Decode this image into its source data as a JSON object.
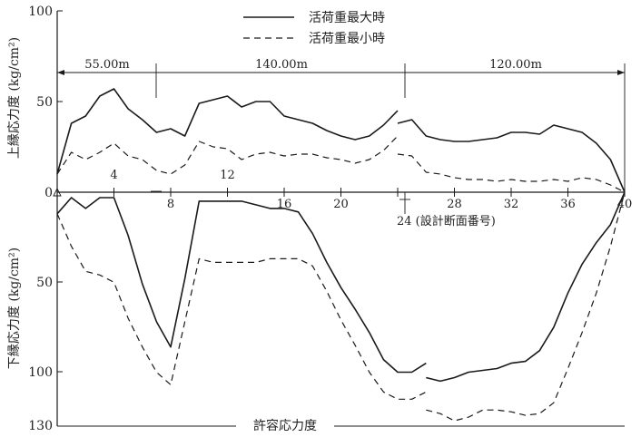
{
  "legend": {
    "max_label": "活荷重最大時",
    "min_label": "活荷重最小時"
  },
  "chart_data": [
    {
      "type": "line",
      "title": "",
      "ylabel": "上縁応力度 (kg/cm²)",
      "ylim": [
        0,
        100
      ],
      "y_ticks": [
        "100",
        "50",
        "0"
      ],
      "x_ticks": [
        "4",
        "8",
        "12",
        "16",
        "20",
        "24",
        "28",
        "32",
        "36",
        "40"
      ],
      "x_axis_label": "24 (設計断面番号)",
      "span_labels": [
        "55.00m",
        "140.00m",
        "120.00m"
      ],
      "series": [
        {
          "name": "活荷重最大時",
          "segments": [
            [
              [
                0,
                10
              ],
              [
                1,
                38
              ],
              [
                2,
                42
              ],
              [
                3,
                53
              ],
              [
                4,
                57
              ],
              [
                5,
                46
              ],
              [
                6,
                40
              ],
              [
                7,
                33
              ],
              [
                8,
                35
              ],
              [
                9,
                31
              ],
              [
                10,
                49
              ],
              [
                11,
                51
              ],
              [
                12,
                53
              ],
              [
                13,
                47
              ],
              [
                14,
                50
              ],
              [
                15,
                50
              ],
              [
                16,
                42
              ],
              [
                17,
                40
              ],
              [
                18,
                38
              ],
              [
                19,
                34
              ],
              [
                20,
                31
              ],
              [
                21,
                29
              ],
              [
                22,
                31
              ],
              [
                23,
                37
              ],
              [
                24,
                45
              ]
            ],
            [
              [
                24,
                38
              ],
              [
                25,
                40
              ],
              [
                26,
                31
              ],
              [
                27,
                29
              ],
              [
                28,
                28
              ],
              [
                29,
                28
              ],
              [
                30,
                29
              ],
              [
                31,
                30
              ],
              [
                32,
                33
              ],
              [
                33,
                33
              ],
              [
                34,
                32
              ],
              [
                35,
                37
              ],
              [
                36,
                35
              ],
              [
                37,
                33
              ],
              [
                38,
                27
              ],
              [
                39,
                18
              ],
              [
                40,
                0
              ]
            ]
          ]
        },
        {
          "name": "活荷重最小時",
          "segments": [
            [
              [
                0,
                10
              ],
              [
                1,
                22
              ],
              [
                2,
                18
              ],
              [
                3,
                22
              ],
              [
                4,
                27
              ],
              [
                5,
                20
              ],
              [
                6,
                18
              ],
              [
                7,
                12
              ],
              [
                8,
                10
              ],
              [
                9,
                15
              ],
              [
                10,
                28
              ],
              [
                11,
                25
              ],
              [
                12,
                24
              ],
              [
                13,
                18
              ],
              [
                14,
                21
              ],
              [
                15,
                22
              ],
              [
                16,
                20
              ],
              [
                17,
                21
              ],
              [
                18,
                21
              ],
              [
                19,
                19
              ],
              [
                20,
                18
              ],
              [
                21,
                16
              ],
              [
                22,
                18
              ],
              [
                23,
                23
              ],
              [
                24,
                31
              ]
            ],
            [
              [
                24,
                21
              ],
              [
                25,
                20
              ],
              [
                26,
                11
              ],
              [
                27,
                10
              ],
              [
                28,
                8
              ],
              [
                29,
                7
              ],
              [
                30,
                7
              ],
              [
                31,
                6
              ],
              [
                32,
                7
              ],
              [
                33,
                6
              ],
              [
                34,
                6
              ],
              [
                35,
                7
              ],
              [
                36,
                6
              ],
              [
                37,
                8
              ],
              [
                38,
                7
              ],
              [
                39,
                4
              ],
              [
                40,
                0
              ]
            ]
          ]
        }
      ]
    },
    {
      "type": "line",
      "title": "",
      "ylabel": "下縁応力度 (kg/cm²)",
      "ylim": [
        0,
        130
      ],
      "y_ticks": [
        "50",
        "100",
        "130"
      ],
      "allowable_label": "許容応力度",
      "series": [
        {
          "name": "活荷重最大時",
          "segments": [
            [
              [
                0,
                12
              ],
              [
                1,
                3
              ],
              [
                2,
                9
              ],
              [
                3,
                3
              ],
              [
                4,
                3
              ],
              [
                5,
                24
              ],
              [
                6,
                51
              ],
              [
                7,
                72
              ],
              [
                8,
                86
              ],
              [
                9,
                48
              ],
              [
                10,
                5
              ],
              [
                11,
                5
              ],
              [
                12,
                5
              ],
              [
                13,
                5
              ],
              [
                14,
                7
              ],
              [
                15,
                9
              ],
              [
                16,
                9
              ],
              [
                17,
                11
              ],
              [
                18,
                23
              ],
              [
                19,
                39
              ],
              [
                20,
                53
              ],
              [
                21,
                65
              ],
              [
                22,
                78
              ],
              [
                23,
                93
              ],
              [
                24,
                100
              ],
              [
                25,
                100
              ],
              [
                26,
                95
              ]
            ],
            [
              [
                26,
                103
              ],
              [
                27,
                105
              ],
              [
                28,
                103
              ],
              [
                29,
                100
              ],
              [
                30,
                99
              ],
              [
                31,
                98
              ],
              [
                32,
                95
              ],
              [
                33,
                94
              ],
              [
                34,
                88
              ],
              [
                35,
                75
              ],
              [
                36,
                56
              ],
              [
                37,
                40
              ],
              [
                38,
                28
              ],
              [
                39,
                18
              ],
              [
                40,
                0
              ]
            ]
          ]
        },
        {
          "name": "活荷重最小時",
          "segments": [
            [
              [
                0,
                12
              ],
              [
                1,
                30
              ],
              [
                2,
                44
              ],
              [
                3,
                46
              ],
              [
                4,
                50
              ],
              [
                5,
                70
              ],
              [
                6,
                86
              ],
              [
                7,
                100
              ],
              [
                8,
                107
              ],
              [
                9,
                72
              ],
              [
                10,
                37
              ],
              [
                11,
                39
              ],
              [
                12,
                39
              ],
              [
                13,
                39
              ],
              [
                14,
                39
              ],
              [
                15,
                37
              ],
              [
                16,
                37
              ],
              [
                17,
                37
              ],
              [
                18,
                41
              ],
              [
                19,
                55
              ],
              [
                20,
                71
              ],
              [
                21,
                85
              ],
              [
                22,
                100
              ],
              [
                23,
                111
              ],
              [
                24,
                115
              ],
              [
                25,
                115
              ],
              [
                26,
                111
              ]
            ],
            [
              [
                26,
                121
              ],
              [
                27,
                123
              ],
              [
                28,
                127
              ],
              [
                29,
                125
              ],
              [
                30,
                121
              ],
              [
                31,
                121
              ],
              [
                32,
                122
              ],
              [
                33,
                124
              ],
              [
                34,
                123
              ],
              [
                35,
                117
              ],
              [
                36,
                98
              ],
              [
                37,
                78
              ],
              [
                38,
                56
              ],
              [
                39,
                30
              ],
              [
                40,
                0
              ]
            ]
          ]
        }
      ]
    }
  ]
}
